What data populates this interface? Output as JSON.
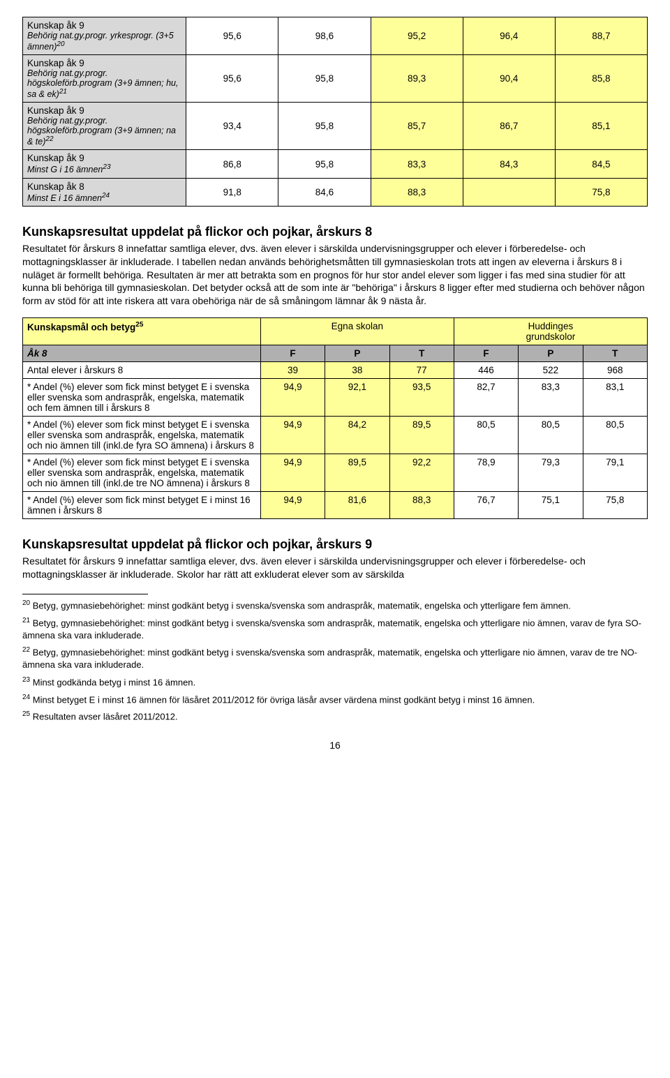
{
  "table1": {
    "rows": [
      {
        "title": "Kunskap åk 9",
        "sub": "Behörig nat.gy.progr. yrkesprogr. (3+5 ämnen)",
        "sup": "20",
        "vals": [
          "95,6",
          "98,6",
          "95,2",
          "96,4",
          "88,7"
        ],
        "hl": [
          false,
          false,
          true,
          true,
          true
        ]
      },
      {
        "title": "Kunskap åk 9",
        "sub": "Behörig nat.gy.progr. högskoleförb.program (3+9 ämnen; hu, sa & ek)",
        "sup": "21",
        "vals": [
          "95,6",
          "95,8",
          "89,3",
          "90,4",
          "85,8"
        ],
        "hl": [
          false,
          false,
          true,
          true,
          true
        ]
      },
      {
        "title": "Kunskap åk 9",
        "sub": "Behörig nat.gy.progr. högskoleförb.program (3+9 ämnen; na & te)",
        "sup": "22",
        "vals": [
          "93,4",
          "95,8",
          "85,7",
          "86,7",
          "85,1"
        ],
        "hl": [
          false,
          false,
          true,
          true,
          true
        ]
      },
      {
        "title": "Kunskap åk 9",
        "sub": "Minst G i 16 ämnen",
        "sup": "23",
        "vals": [
          "86,8",
          "95,8",
          "83,3",
          "84,3",
          "84,5"
        ],
        "hl": [
          false,
          false,
          true,
          true,
          true
        ]
      },
      {
        "title": "Kunskap åk 8",
        "sub": "Minst E i 16 ämnen",
        "sup": "24",
        "vals": [
          "91,8",
          "84,6",
          "88,3",
          "",
          "75,8"
        ],
        "hl": [
          false,
          false,
          true,
          true,
          true
        ]
      }
    ]
  },
  "section1": {
    "title": "Kunskapsresultat uppdelat på flickor och pojkar, årskurs 8",
    "body": "Resultatet för årskurs 8 innefattar samtliga elever, dvs. även elever i särskilda undervisningsgrupper och elever i förberedelse- och mottagningsklasser är inkluderade. I tabellen nedan används behörighetsmåtten till gymnasieskolan trots att ingen av eleverna i årskurs 8 i nuläget är formellt behöriga. Resultaten är mer att betrakta som en prognos för hur stor andel elever som ligger i fas med sina studier för att kunna bli behöriga till gymnasieskolan. Det betyder också att de som inte är \"behöriga\" i årskurs 8 ligger efter med studierna och behöver någon form av stöd för att inte riskera att vara obehöriga när de så småningom lämnar åk 9 nästa år."
  },
  "table2": {
    "header": {
      "label": "Kunskapsmål och betyg",
      "label_sup": "25",
      "egna": "Egna skolan",
      "hudd1": "Huddinges",
      "hudd2": "grundskolor"
    },
    "subheader": {
      "ak": "Åk 8",
      "cols": [
        "F",
        "P",
        "T",
        "F",
        "P",
        "T"
      ]
    },
    "rows": [
      {
        "label": "Antal elever i årskurs 8",
        "vals": [
          "39",
          "38",
          "77",
          "446",
          "522",
          "968"
        ]
      },
      {
        "label": "* Andel (%) elever som fick minst betyget E i svenska eller svenska som andraspråk, engelska, matematik och fem ämnen till i årskurs 8",
        "vals": [
          "94,9",
          "92,1",
          "93,5",
          "82,7",
          "83,3",
          "83,1"
        ]
      },
      {
        "label": "* Andel (%) elever som fick minst betyget E i svenska eller svenska som andraspråk, engelska, matematik och nio ämnen till (inkl.de fyra SO ämnena) i årskurs 8",
        "vals": [
          "94,9",
          "84,2",
          "89,5",
          "80,5",
          "80,5",
          "80,5"
        ]
      },
      {
        "label": "* Andel (%) elever som fick minst betyget E i svenska eller svenska som andraspråk, engelska, matematik och nio ämnen till (inkl.de tre NO ämnena) i årskurs 8",
        "vals": [
          "94,9",
          "89,5",
          "92,2",
          "78,9",
          "79,3",
          "79,1"
        ]
      },
      {
        "label": "* Andel (%) elever som fick minst betyget E i minst 16 ämnen i årskurs 8",
        "vals": [
          "94,9",
          "81,6",
          "88,3",
          "76,7",
          "75,1",
          "75,8"
        ]
      }
    ]
  },
  "section2": {
    "title": "Kunskapsresultat uppdelat på flickor och pojkar, årskurs 9",
    "body": "Resultatet för årskurs 9 innefattar samtliga elever, dvs. även elever i särskilda undervisningsgrupper och elever i förberedelse- och mottagningsklasser är inkluderade. Skolor har rätt att exkluderat elever som av särskilda"
  },
  "footnotes": [
    {
      "num": "20",
      "text": " Betyg, gymnasiebehörighet: minst godkänt betyg i svenska/svenska som andraspråk, matematik, engelska och ytterligare fem ämnen."
    },
    {
      "num": "21",
      "text": " Betyg, gymnasiebehörighet: minst godkänt betyg i svenska/svenska som andraspråk, matematik, engelska och ytterligare nio ämnen, varav de fyra SO-ämnena ska vara inkluderade."
    },
    {
      "num": "22",
      "text": " Betyg, gymnasiebehörighet: minst godkänt betyg i svenska/svenska som andraspråk, matematik, engelska och ytterligare nio ämnen, varav de tre NO-ämnena ska vara inkluderade."
    },
    {
      "num": "23",
      "text": " Minst godkända betyg i minst 16 ämnen."
    },
    {
      "num": "24",
      "text": " Minst betyget E i minst 16 ämnen för läsåret 2011/2012 för övriga läsår avser värdena minst godkänt betyg i minst 16 ämnen."
    },
    {
      "num": "25",
      "text": " Resultaten avser läsåret 2011/2012."
    }
  ],
  "pagenum": "16"
}
